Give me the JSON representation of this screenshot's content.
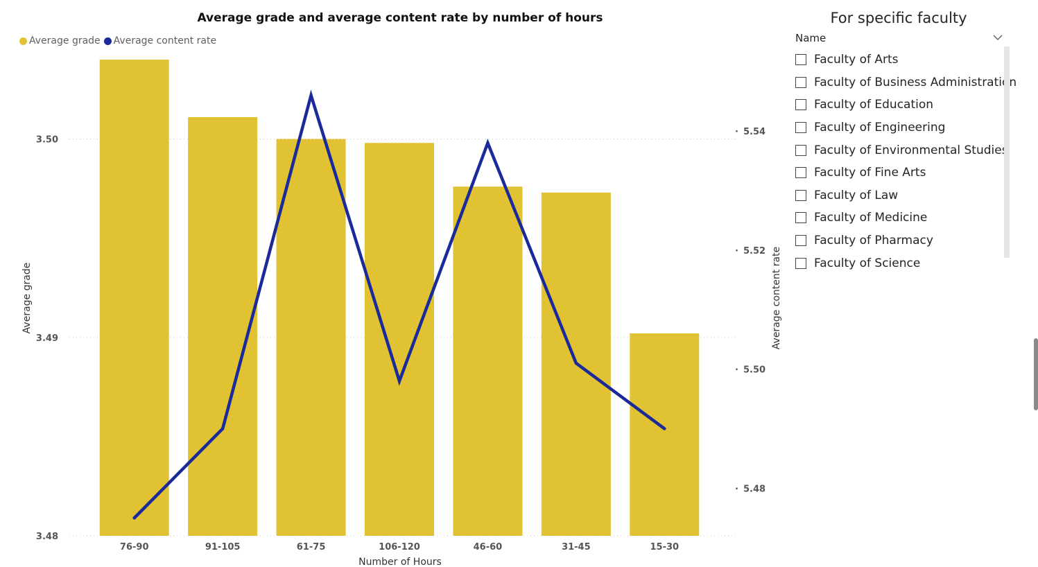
{
  "chart_data": {
    "type": "bar+line",
    "title": "Average grade and average content rate by number of hours",
    "categories": [
      "76-90",
      "91-105",
      "61-75",
      "106-120",
      "46-60",
      "31-45",
      "15-30"
    ],
    "series": [
      {
        "name": "Average grade",
        "type": "bar",
        "axis": "left",
        "color": "#E1C233",
        "values": [
          3.504,
          3.5011,
          3.5,
          3.4998,
          3.4976,
          3.4973,
          3.4902
        ]
      },
      {
        "name": "Average content rate",
        "type": "line",
        "axis": "right",
        "color": "#1A2A9A",
        "values": [
          5.475,
          5.49,
          5.546,
          5.498,
          5.538,
          5.501,
          5.49
        ]
      }
    ],
    "xlabel": "Number of Hours",
    "ylabel": "Average grade",
    "y2label": "Average content rate",
    "ylim": [
      3.48,
      3.504
    ],
    "y2lim": [
      5.472,
      5.552
    ],
    "yticks": [
      "3.48",
      "3.49",
      "3.50"
    ],
    "y2ticks": [
      "5.48",
      "5.50",
      "5.52",
      "5.54"
    ],
    "legend": "top-left",
    "grid": true
  },
  "slicer": {
    "title": "For specific faculty",
    "header": "Name",
    "items": [
      "Faculty of Arts",
      "Faculty of Business Administration",
      "Faculty of Education",
      "Faculty of Engineering",
      "Faculty of Environmental Studies",
      "Faculty of Fine Arts",
      "Faculty of Law",
      "Faculty of Medicine",
      "Faculty of Pharmacy",
      "Faculty of Science"
    ]
  }
}
